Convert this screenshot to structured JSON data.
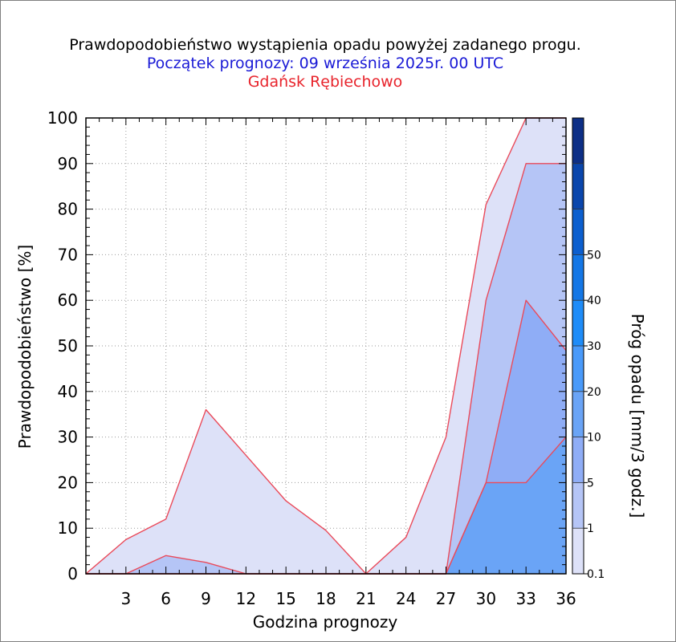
{
  "chart_data": {
    "type": "area",
    "title": "Prawdopodobieństwo wystąpienia opadu powyżej zadanego progu.",
    "subtitle": "Początek prognozy: 09 września 2025r. 00 UTC",
    "location": "Gdańsk Rębiechowo",
    "xlabel": "Godzina prognozy",
    "ylabel": "Prawdopodobieństwo [%]",
    "xlim": [
      0,
      36
    ],
    "ylim": [
      0,
      100
    ],
    "x": [
      0,
      3,
      6,
      9,
      12,
      15,
      18,
      21,
      24,
      27,
      30,
      33,
      36
    ],
    "xticks": [
      "3",
      "6",
      "9",
      "12",
      "15",
      "18",
      "21",
      "24",
      "27",
      "30",
      "33",
      "36"
    ],
    "yticks": [
      "0",
      "10",
      "20",
      "30",
      "40",
      "50",
      "60",
      "70",
      "80",
      "90",
      "100"
    ],
    "series": [
      {
        "name": "0.1",
        "color": "#dde1f8",
        "values": [
          0,
          7.5,
          12,
          36,
          26,
          16,
          9.5,
          0,
          8,
          30,
          81,
          100,
          100
        ]
      },
      {
        "name": "1",
        "color": "#b5c5f6",
        "values": [
          0,
          0,
          4,
          2.5,
          0,
          0,
          0,
          0,
          0,
          0,
          60,
          90,
          90
        ]
      },
      {
        "name": "5",
        "color": "#8fadf6",
        "values": [
          0,
          0,
          0,
          0,
          0,
          0,
          0,
          0,
          0,
          0,
          20,
          60,
          49
        ]
      },
      {
        "name": "10",
        "color": "#6aa4f6",
        "values": [
          0,
          0,
          0,
          0,
          0,
          0,
          0,
          0,
          0,
          0,
          20,
          20,
          30
        ]
      }
    ],
    "line_color": "#ea4a5a",
    "colorbar": {
      "label": "Próg opadu [mm/3 godz.]",
      "ticks": [
        "0.1",
        "1",
        "5",
        "10",
        "20",
        "30",
        "40",
        "50"
      ],
      "colors": [
        "#dde1f8",
        "#b5c5f6",
        "#8fadf6",
        "#6aa4f6",
        "#499afa",
        "#1e8cf8",
        "#1477e6",
        "#0c5fcf",
        "#0a46ac",
        "#0d2f86"
      ]
    }
  }
}
